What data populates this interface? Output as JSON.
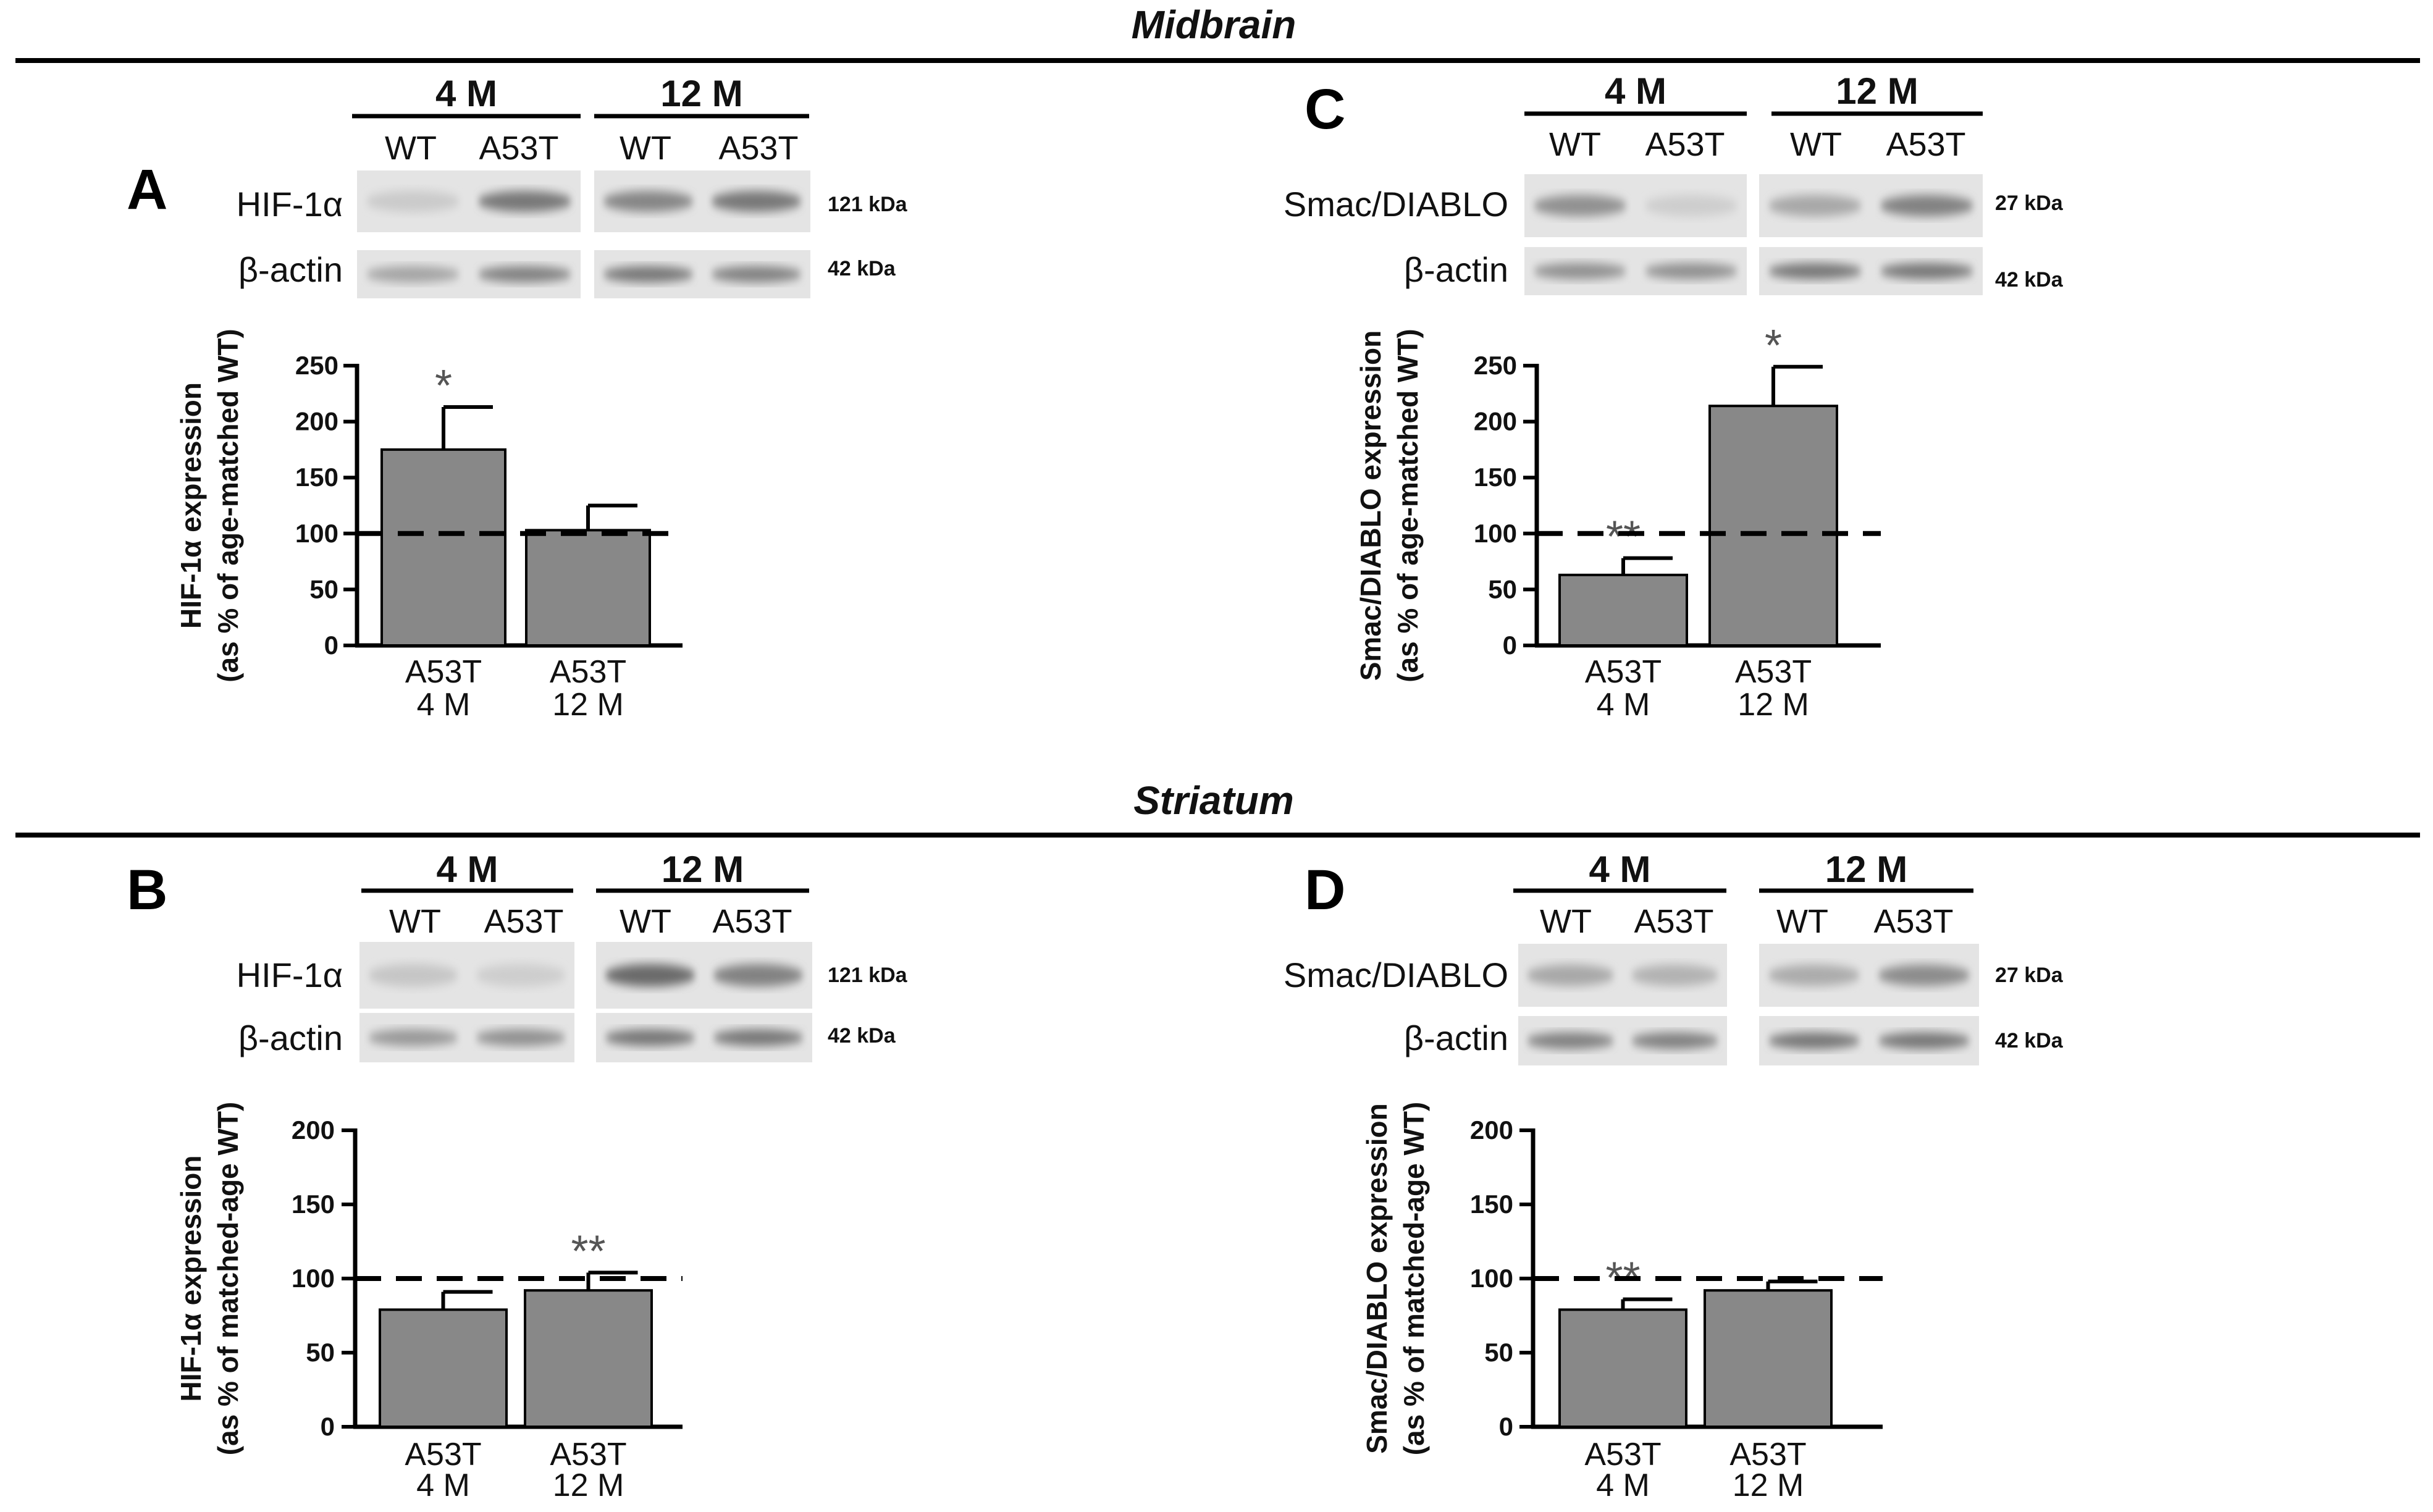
{
  "sections": [
    {
      "key": "midbrain",
      "title": "Midbrain"
    },
    {
      "key": "striatum",
      "title": "Striatum"
    }
  ],
  "chart_data": [
    {
      "id": "A",
      "type": "bar",
      "region": "Midbrain",
      "panel_label": "A",
      "protein_label": "HIF-1α",
      "loading_label": "β-actin",
      "protein_kda": "121 kDa",
      "loading_kda": "42 kDa",
      "blot_groups": [
        {
          "label": "4 M",
          "lanes": [
            "WT",
            "A53T"
          ]
        },
        {
          "label": "12 M",
          "lanes": [
            "WT",
            "A53T"
          ]
        }
      ],
      "blot_intensity": {
        "protein": [
          0.12,
          0.55,
          0.48,
          0.55
        ],
        "loading": [
          0.32,
          0.5,
          0.55,
          0.5
        ]
      },
      "ylabel_lines": [
        "HIF-1α expression",
        "(as % of age-matched WT)"
      ],
      "ylim": [
        0,
        250
      ],
      "yticks": [
        0,
        50,
        100,
        150,
        200,
        250
      ],
      "reference": 100,
      "categories": [
        [
          "A53T",
          "4 M"
        ],
        [
          "A53T",
          "12 M"
        ]
      ],
      "values": [
        175,
        103
      ],
      "errors": [
        38,
        22
      ],
      "significance": [
        "*",
        ""
      ]
    },
    {
      "id": "C",
      "type": "bar",
      "region": "Midbrain",
      "panel_label": "C",
      "protein_label": "Smac/DIABLO",
      "loading_label": "β-actin",
      "protein_kda": "27 kDa",
      "loading_kda": "42 kDa",
      "blot_groups": [
        {
          "label": "4 M",
          "lanes": [
            "WT",
            "A53T"
          ]
        },
        {
          "label": "12 M",
          "lanes": [
            "WT",
            "A53T"
          ]
        }
      ],
      "blot_intensity": {
        "protein": [
          0.42,
          0.1,
          0.3,
          0.5
        ],
        "loading": [
          0.42,
          0.42,
          0.55,
          0.55
        ]
      },
      "ylabel_lines": [
        "Smac/DIABLO expression",
        "(as % of age-matched WT)"
      ],
      "ylim": [
        0,
        250
      ],
      "yticks": [
        0,
        50,
        100,
        150,
        200,
        250
      ],
      "reference": 100,
      "categories": [
        [
          "A53T",
          "4 M"
        ],
        [
          "A53T",
          "12 M"
        ]
      ],
      "values": [
        63,
        214
      ],
      "errors": [
        15,
        35
      ],
      "significance": [
        "**",
        "*"
      ]
    },
    {
      "id": "B",
      "type": "bar",
      "region": "Striatum",
      "panel_label": "B",
      "protein_label": "HIF-1α",
      "loading_label": "β-actin",
      "protein_kda": "121 kDa",
      "loading_kda": "42 kDa",
      "blot_groups": [
        {
          "label": "4 M",
          "lanes": [
            "WT",
            "A53T"
          ]
        },
        {
          "label": "12 M",
          "lanes": [
            "WT",
            "A53T"
          ]
        }
      ],
      "blot_intensity": {
        "protein": [
          0.14,
          0.1,
          0.62,
          0.5
        ],
        "loading": [
          0.38,
          0.42,
          0.55,
          0.55
        ]
      },
      "ylabel_lines": [
        "HIF-1α expression",
        "(as % of matched-age WT)"
      ],
      "ylim": [
        0,
        200
      ],
      "yticks": [
        0,
        50,
        100,
        150,
        200
      ],
      "reference": 100,
      "categories": [
        [
          "A53T",
          "4 M"
        ],
        [
          "A53T",
          "12 M"
        ]
      ],
      "values": [
        79,
        92
      ],
      "errors": [
        12,
        12
      ],
      "significance": [
        "",
        "**"
      ]
    },
    {
      "id": "D",
      "type": "bar",
      "region": "Striatum",
      "panel_label": "D",
      "protein_label": "Smac/DIABLO",
      "loading_label": "β-actin",
      "protein_kda": "27 kDa",
      "loading_kda": "42 kDa",
      "blot_groups": [
        {
          "label": "4 M",
          "lanes": [
            "WT",
            "A53T"
          ]
        },
        {
          "label": "12 M",
          "lanes": [
            "WT",
            "A53T"
          ]
        }
      ],
      "blot_intensity": {
        "protein": [
          0.3,
          0.25,
          0.28,
          0.45
        ],
        "loading": [
          0.5,
          0.5,
          0.55,
          0.55
        ]
      },
      "ylabel_lines": [
        "Smac/DIABLO expression",
        "(as % of matched-age WT)"
      ],
      "ylim": [
        0,
        200
      ],
      "yticks": [
        0,
        50,
        100,
        150,
        200
      ],
      "reference": 100,
      "categories": [
        [
          "A53T",
          "4 M"
        ],
        [
          "A53T",
          "12 M"
        ]
      ],
      "values": [
        79,
        92
      ],
      "errors": [
        7,
        6
      ],
      "significance": [
        "**",
        ""
      ]
    }
  ]
}
